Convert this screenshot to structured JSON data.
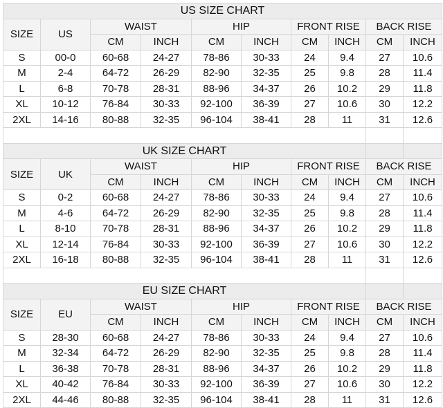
{
  "column_groups": [
    "WAIST",
    "HIP",
    "FRONT RISE",
    "BACK RISE"
  ],
  "size_header": "SIZE",
  "unit_labels": [
    "CM",
    "INCH"
  ],
  "tables": [
    {
      "title": "US SIZE CHART",
      "region_label": "US",
      "rows": [
        [
          "S",
          "00-0",
          "60-68",
          "24-27",
          "78-86",
          "30-33",
          "24",
          "9.4",
          "27",
          "10.6"
        ],
        [
          "M",
          "2-4",
          "64-72",
          "26-29",
          "82-90",
          "32-35",
          "25",
          "9.8",
          "28",
          "11.4"
        ],
        [
          "L",
          "6-8",
          "70-78",
          "28-31",
          "88-96",
          "34-37",
          "26",
          "10.2",
          "29",
          "11.8"
        ],
        [
          "XL",
          "10-12",
          "76-84",
          "30-33",
          "92-100",
          "36-39",
          "27",
          "10.6",
          "30",
          "12.2"
        ],
        [
          "2XL",
          "14-16",
          "80-88",
          "32-35",
          "96-104",
          "38-41",
          "28",
          "11",
          "31",
          "12.6"
        ]
      ]
    },
    {
      "title": "UK SIZE CHART",
      "region_label": "UK",
      "rows": [
        [
          "S",
          "0-2",
          "60-68",
          "24-27",
          "78-86",
          "30-33",
          "24",
          "9.4",
          "27",
          "10.6"
        ],
        [
          "M",
          "4-6",
          "64-72",
          "26-29",
          "82-90",
          "32-35",
          "25",
          "9.8",
          "28",
          "11.4"
        ],
        [
          "L",
          "8-10",
          "70-78",
          "28-31",
          "88-96",
          "34-37",
          "26",
          "10.2",
          "29",
          "11.8"
        ],
        [
          "XL",
          "12-14",
          "76-84",
          "30-33",
          "92-100",
          "36-39",
          "27",
          "10.6",
          "30",
          "12.2"
        ],
        [
          "2XL",
          "16-18",
          "80-88",
          "32-35",
          "96-104",
          "38-41",
          "28",
          "11",
          "31",
          "12.6"
        ]
      ]
    },
    {
      "title": "EU SIZE CHART",
      "region_label": "EU",
      "rows": [
        [
          "S",
          "28-30",
          "60-68",
          "24-27",
          "78-86",
          "30-33",
          "24",
          "9.4",
          "27",
          "10.6"
        ],
        [
          "M",
          "32-34",
          "64-72",
          "26-29",
          "82-90",
          "32-35",
          "25",
          "9.8",
          "28",
          "11.4"
        ],
        [
          "L",
          "36-38",
          "70-78",
          "28-31",
          "88-96",
          "34-37",
          "26",
          "10.2",
          "29",
          "11.8"
        ],
        [
          "XL",
          "40-42",
          "76-84",
          "30-33",
          "92-100",
          "36-39",
          "27",
          "10.6",
          "30",
          "12.2"
        ],
        [
          "2XL",
          "44-46",
          "80-88",
          "32-35",
          "96-104",
          "38-41",
          "28",
          "11",
          "31",
          "12.6"
        ]
      ]
    }
  ]
}
